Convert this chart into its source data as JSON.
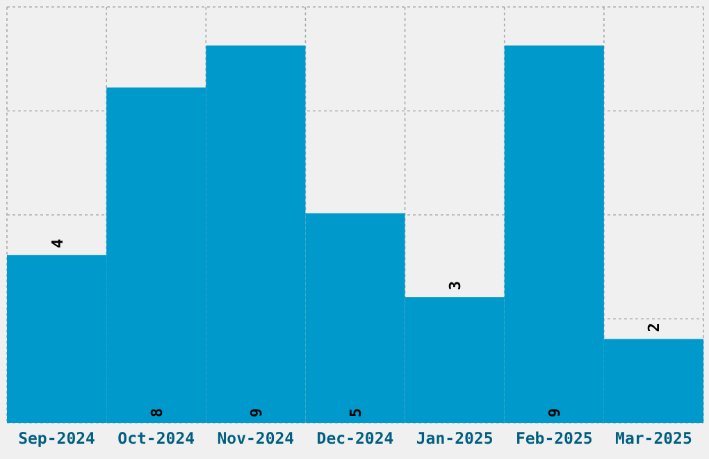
{
  "chart_data": {
    "type": "bar",
    "categories": [
      "Sep-2024",
      "Oct-2024",
      "Nov-2024",
      "Dec-2024",
      "Jan-2025",
      "Feb-2025",
      "Mar-2025"
    ],
    "values": [
      4,
      8,
      9,
      5,
      3,
      9,
      2
    ],
    "color": "#0099cc",
    "ylim": [
      0,
      9.92
    ],
    "yticks": [
      {
        "value": 0,
        "label": null
      },
      {
        "value": 2.48,
        "label": null
      },
      {
        "value": 4.96,
        "label": null
      },
      {
        "value": 7.44,
        "label": null
      },
      {
        "value": 9.92,
        "label": null
      }
    ],
    "tick_labels": "x",
    "grid": true,
    "data_labels": true
  }
}
